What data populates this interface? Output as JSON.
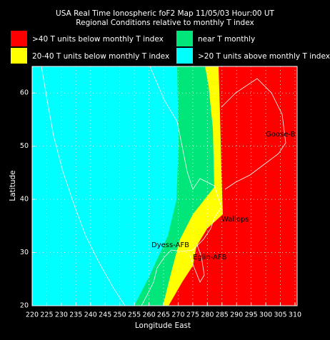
{
  "header": {
    "title": "USA Real Time Ionospheric foF2 Map  11/05/03 Hour:00 UT",
    "subtitle": "Regional Conditions relative to monthly T index"
  },
  "legend": [
    {
      "label": ">40 T units below monthly T index",
      "color": "#ff0000"
    },
    {
      "label": "20-40 T units below monthly T index",
      "color": "#ffff00"
    },
    {
      "label": "near T monthly",
      "color": "#00e67a"
    },
    {
      "label": ">20 T units above monthly T index",
      "color": "#00ffff"
    }
  ],
  "map": {
    "x_label": "Longitude East",
    "y_label": "Latitude",
    "xlim": [
      220,
      310
    ],
    "ylim": [
      20,
      65
    ],
    "xticks": [
      220,
      225,
      230,
      235,
      240,
      245,
      250,
      255,
      260,
      265,
      270,
      275,
      280,
      285,
      290,
      295,
      300,
      305,
      310
    ],
    "yticks": [
      20,
      30,
      40,
      50,
      60
    ],
    "stations": [
      "Goose-B",
      "Wallops",
      "Dyess-AFB",
      "Eglin-AFB"
    ]
  }
}
